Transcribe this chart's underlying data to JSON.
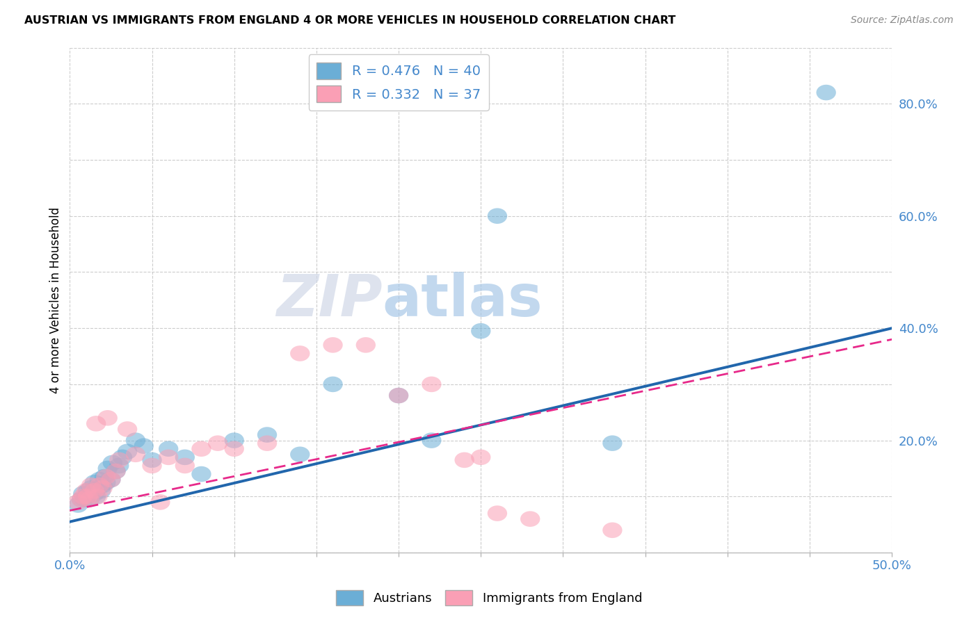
{
  "title": "AUSTRIAN VS IMMIGRANTS FROM ENGLAND 4 OR MORE VEHICLES IN HOUSEHOLD CORRELATION CHART",
  "source": "Source: ZipAtlas.com",
  "ylabel": "4 or more Vehicles in Household",
  "xlim": [
    0.0,
    0.5
  ],
  "ylim": [
    0.0,
    0.9
  ],
  "xticks": [
    0.0,
    0.05,
    0.1,
    0.15,
    0.2,
    0.25,
    0.3,
    0.35,
    0.4,
    0.45,
    0.5
  ],
  "yticks": [
    0.0,
    0.1,
    0.2,
    0.3,
    0.4,
    0.5,
    0.6,
    0.7,
    0.8,
    0.9
  ],
  "blue_color": "#6baed6",
  "pink_color": "#fa9fb5",
  "blue_line_color": "#2166ac",
  "pink_line_color": "#e7298a",
  "R_blue": 0.476,
  "N_blue": 40,
  "R_pink": 0.332,
  "N_pink": 37,
  "watermark_zip": "ZIP",
  "watermark_atlas": "atlas",
  "legend_labels": [
    "Austrians",
    "Immigrants from England"
  ],
  "blue_line_x0": 0.0,
  "blue_line_y0": 0.055,
  "blue_line_x1": 0.5,
  "blue_line_y1": 0.4,
  "pink_line_x0": 0.0,
  "pink_line_y0": 0.075,
  "pink_line_x1": 0.5,
  "pink_line_y1": 0.38,
  "austrians_x": [
    0.005,
    0.007,
    0.008,
    0.009,
    0.01,
    0.011,
    0.012,
    0.013,
    0.015,
    0.015,
    0.016,
    0.017,
    0.018,
    0.019,
    0.02,
    0.021,
    0.022,
    0.023,
    0.025,
    0.026,
    0.028,
    0.03,
    0.032,
    0.035,
    0.04,
    0.045,
    0.05,
    0.06,
    0.07,
    0.08,
    0.1,
    0.12,
    0.14,
    0.16,
    0.2,
    0.22,
    0.25,
    0.26,
    0.33,
    0.46
  ],
  "austrians_y": [
    0.085,
    0.095,
    0.105,
    0.095,
    0.1,
    0.11,
    0.095,
    0.115,
    0.105,
    0.125,
    0.1,
    0.115,
    0.13,
    0.11,
    0.12,
    0.135,
    0.125,
    0.15,
    0.13,
    0.16,
    0.145,
    0.155,
    0.17,
    0.18,
    0.2,
    0.19,
    0.165,
    0.185,
    0.17,
    0.14,
    0.2,
    0.21,
    0.175,
    0.3,
    0.28,
    0.2,
    0.395,
    0.6,
    0.195,
    0.82
  ],
  "english_x": [
    0.005,
    0.007,
    0.008,
    0.01,
    0.011,
    0.012,
    0.013,
    0.015,
    0.016,
    0.017,
    0.018,
    0.02,
    0.022,
    0.023,
    0.025,
    0.028,
    0.03,
    0.035,
    0.04,
    0.05,
    0.055,
    0.06,
    0.07,
    0.08,
    0.09,
    0.1,
    0.12,
    0.14,
    0.16,
    0.18,
    0.2,
    0.22,
    0.24,
    0.25,
    0.26,
    0.28,
    0.33
  ],
  "english_y": [
    0.09,
    0.095,
    0.1,
    0.11,
    0.1,
    0.095,
    0.12,
    0.11,
    0.23,
    0.1,
    0.12,
    0.115,
    0.135,
    0.24,
    0.13,
    0.145,
    0.165,
    0.22,
    0.175,
    0.155,
    0.09,
    0.17,
    0.155,
    0.185,
    0.195,
    0.185,
    0.195,
    0.355,
    0.37,
    0.37,
    0.28,
    0.3,
    0.165,
    0.17,
    0.07,
    0.06,
    0.04
  ]
}
